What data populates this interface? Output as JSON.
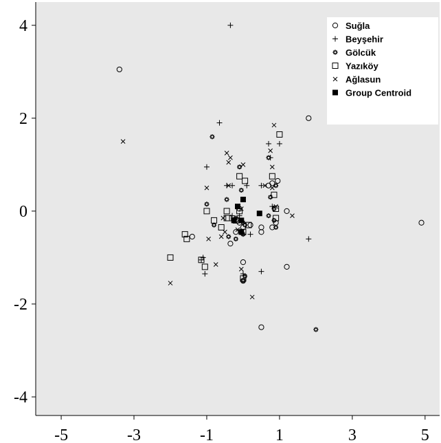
{
  "chart_data": {
    "type": "scatter",
    "title": "",
    "xlabel": "",
    "ylabel": "",
    "xlim": [
      -5.7,
      5.4
    ],
    "ylim": [
      -4.4,
      4.5
    ],
    "x_ticks": [
      -5,
      -3,
      -1,
      1,
      3,
      5
    ],
    "y_ticks": [
      4,
      2,
      0,
      -2,
      -4
    ],
    "x_tick_labels": [
      "-5",
      "-3",
      "-1",
      "1",
      "3",
      "5"
    ],
    "y_tick_labels": [
      "4",
      "2",
      "0",
      "-2",
      "-4"
    ],
    "grid": false,
    "legend_position": "top-right",
    "background": "#e8e8e8",
    "series": [
      {
        "name": "Suğla",
        "marker": "circle",
        "points": [
          [
            -3.4,
            3.05
          ],
          [
            1.8,
            2.0
          ],
          [
            4.9,
            -0.25
          ],
          [
            1.2,
            -1.2
          ],
          [
            1.2,
            0.0
          ],
          [
            0.5,
            -2.5
          ],
          [
            -1.4,
            -0.55
          ],
          [
            0.95,
            0.65
          ],
          [
            0.7,
            0.55
          ],
          [
            0.8,
            0.6
          ],
          [
            0.9,
            -0.25
          ],
          [
            0.5,
            -0.35
          ],
          [
            0.5,
            -0.45
          ],
          [
            0.2,
            -0.3
          ],
          [
            0.0,
            -0.35
          ],
          [
            -0.1,
            -0.25
          ],
          [
            -0.2,
            -0.45
          ],
          [
            -0.35,
            -0.7
          ],
          [
            0.0,
            -1.1
          ],
          [
            0.0,
            -1.5
          ],
          [
            -0.1,
            0.05
          ],
          [
            0.8,
            -0.35
          ]
        ]
      },
      {
        "name": "Beyşehir",
        "marker": "plus",
        "points": [
          [
            -0.35,
            4.0
          ],
          [
            -0.65,
            1.9
          ],
          [
            1.0,
            1.45
          ],
          [
            0.7,
            1.45
          ],
          [
            0.75,
            1.15
          ],
          [
            -1.0,
            0.95
          ],
          [
            -0.45,
            0.55
          ],
          [
            -0.3,
            0.55
          ],
          [
            0.1,
            0.55
          ],
          [
            0.5,
            0.55
          ],
          [
            1.8,
            -0.6
          ],
          [
            -1.1,
            -1.0
          ],
          [
            -1.15,
            -1.05
          ],
          [
            -1.05,
            -1.35
          ],
          [
            0.5,
            -1.3
          ],
          [
            0.0,
            -1.35
          ],
          [
            0.8,
            0.1
          ],
          [
            -0.1,
            -0.1
          ],
          [
            -0.3,
            -0.1
          ],
          [
            0.2,
            -0.5
          ]
        ]
      },
      {
        "name": "Gölcük",
        "marker": "flower",
        "points": [
          [
            -0.85,
            1.6
          ],
          [
            0.7,
            1.15
          ],
          [
            -0.1,
            0.95
          ],
          [
            -0.05,
            0.45
          ],
          [
            -1.0,
            0.15
          ],
          [
            -0.45,
            0.25
          ],
          [
            0.75,
            0.3
          ],
          [
            0.9,
            0.55
          ],
          [
            0.85,
            0.05
          ],
          [
            0.85,
            -0.2
          ],
          [
            0.9,
            -0.35
          ],
          [
            0.7,
            -0.1
          ],
          [
            -0.8,
            -0.3
          ],
          [
            -0.2,
            -0.15
          ],
          [
            0.0,
            -0.25
          ],
          [
            -0.4,
            -0.55
          ],
          [
            0.0,
            -0.5
          ],
          [
            -0.2,
            -0.6
          ],
          [
            0.05,
            -1.4
          ],
          [
            0.0,
            -1.5
          ],
          [
            2.0,
            -2.55
          ],
          [
            0.05,
            -0.3
          ]
        ]
      },
      {
        "name": "Yazıköy",
        "marker": "square",
        "points": [
          [
            1.0,
            1.65
          ],
          [
            0.8,
            0.75
          ],
          [
            -0.1,
            0.75
          ],
          [
            0.05,
            0.65
          ],
          [
            0.85,
            0.35
          ],
          [
            0.9,
            0.05
          ],
          [
            0.9,
            -0.15
          ],
          [
            -0.45,
            0.0
          ],
          [
            -0.1,
            0.0
          ],
          [
            -1.0,
            0.0
          ],
          [
            -0.8,
            -0.2
          ],
          [
            -0.4,
            -0.15
          ],
          [
            -0.2,
            -0.2
          ],
          [
            0.15,
            -0.3
          ],
          [
            -0.6,
            -0.35
          ],
          [
            0.0,
            -0.45
          ],
          [
            -1.6,
            -0.5
          ],
          [
            -1.55,
            -0.6
          ],
          [
            -1.15,
            -1.05
          ],
          [
            -1.05,
            -1.2
          ],
          [
            -2.0,
            -1.0
          ],
          [
            0.0,
            -1.45
          ],
          [
            -0.45,
            -0.15
          ]
        ]
      },
      {
        "name": "Ağlasun",
        "marker": "x",
        "points": [
          [
            -3.3,
            1.5
          ],
          [
            0.85,
            1.85
          ],
          [
            -0.45,
            1.25
          ],
          [
            -0.35,
            1.15
          ],
          [
            -0.4,
            1.05
          ],
          [
            0.75,
            1.3
          ],
          [
            0.0,
            1.0
          ],
          [
            0.8,
            0.95
          ],
          [
            -1.0,
            0.5
          ],
          [
            -0.4,
            0.55
          ],
          [
            0.6,
            0.55
          ],
          [
            0.8,
            0.5
          ],
          [
            1.35,
            -0.1
          ],
          [
            -0.55,
            -0.15
          ],
          [
            -0.95,
            -0.6
          ],
          [
            -0.6,
            -0.55
          ],
          [
            -0.5,
            -0.45
          ],
          [
            -0.15,
            -0.4
          ],
          [
            -0.05,
            -1.25
          ],
          [
            -0.75,
            -1.15
          ],
          [
            -2.0,
            -1.55
          ],
          [
            0.25,
            -1.85
          ],
          [
            0.9,
            0.1
          ],
          [
            -0.05,
            0.05
          ]
        ]
      },
      {
        "name": "Group Centroid",
        "marker": "filled-square",
        "points": [
          [
            0.45,
            -0.05
          ],
          [
            0.0,
            0.25
          ],
          [
            -0.15,
            0.1
          ],
          [
            -0.05,
            -0.2
          ],
          [
            -0.25,
            -0.2
          ],
          [
            -0.05,
            -0.45
          ]
        ]
      }
    ]
  },
  "colors": {
    "background": "#e8e8e8",
    "marker": "#000000",
    "legend_bg": "#ffffff"
  }
}
